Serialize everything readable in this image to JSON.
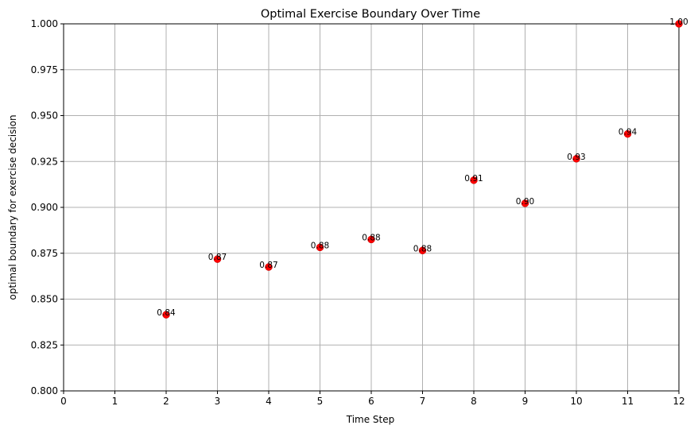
{
  "chart_data": {
    "type": "scatter",
    "title": "Optimal Exercise Boundary Over Time",
    "xlabel": "Time Step",
    "ylabel": "optimal boundary for exercise decision",
    "xlim": [
      0,
      12
    ],
    "ylim": [
      0.8,
      1.0
    ],
    "xticks": [
      0,
      1,
      2,
      3,
      4,
      5,
      6,
      7,
      8,
      9,
      10,
      11,
      12
    ],
    "xtick_labels": [
      "0",
      "1",
      "2",
      "3",
      "4",
      "5",
      "6",
      "7",
      "8",
      "9",
      "10",
      "11",
      "12"
    ],
    "yticks": [
      0.8,
      0.825,
      0.85,
      0.875,
      0.9,
      0.925,
      0.95,
      0.975,
      1.0
    ],
    "ytick_labels": [
      "0.800",
      "0.825",
      "0.850",
      "0.875",
      "0.900",
      "0.925",
      "0.950",
      "0.975",
      "1.000"
    ],
    "grid": true,
    "point_color": "#ff0000",
    "x": [
      2,
      3,
      4,
      5,
      6,
      7,
      8,
      9,
      10,
      11,
      12
    ],
    "y": [
      0.8415,
      0.8718,
      0.8675,
      0.8782,
      0.8825,
      0.8765,
      0.9148,
      0.9022,
      0.9265,
      0.94,
      1.0
    ],
    "labels": [
      "0.84",
      "0.87",
      "0.87",
      "0.88",
      "0.88",
      "0.88",
      "0.91",
      "0.90",
      "0.93",
      "0.94",
      "1.00"
    ]
  }
}
